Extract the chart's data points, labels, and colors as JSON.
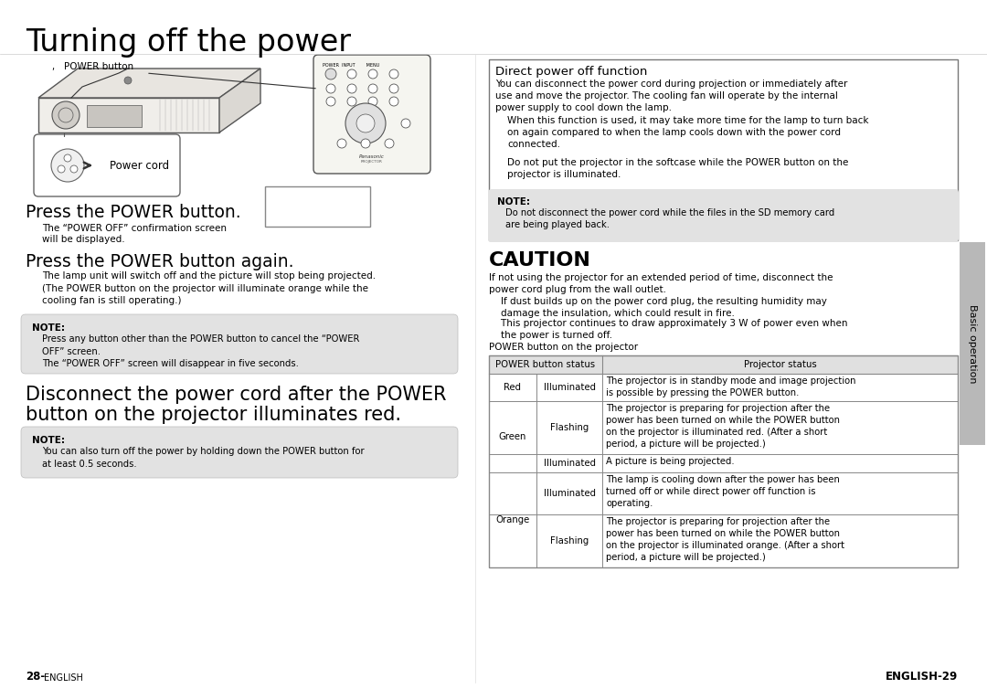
{
  "title": "Turning off the power",
  "bg_color": "#ffffff",
  "left_col": {
    "power_button_label": "POWER button",
    "power_cord_label": "Power cord",
    "step1_heading": "Press the POWER button.",
    "step1_body_line1": "The “POWER OFF” confirmation screen",
    "step1_body_line2": "will be displayed.",
    "step2_heading": "Press the POWER button again.",
    "step2_body": "The lamp unit will switch off and the picture will stop being projected.\n(The POWER button on the projector will illuminate orange while the\ncooling fan is still operating.)",
    "note1_title": "NOTE:",
    "note1_body": "Press any button other than the POWER button to cancel the “POWER\nOFF” screen.\nThe “POWER OFF” screen will disappear in five seconds.",
    "step3_heading_line1": "Disconnect the power cord after the POWER",
    "step3_heading_line2": "button on the projector illuminates red.",
    "note2_title": "NOTE:",
    "note2_body": "You can also turn off the power by holding down the POWER button for\nat least 0.5 seconds.",
    "page_num_prefix": "28-",
    "page_num_suffix": "English"
  },
  "right_col": {
    "direct_box_title": "Direct power off function",
    "direct_box_body": "You can disconnect the power cord during projection or immediately after\nuse and move the projector. The cooling fan will operate by the internal\npower supply to cool down the lamp.",
    "direct_box_indent1": "When this function is used, it may take more time for the lamp to turn back\non again compared to when the lamp cools down with the power cord\nconnected.",
    "direct_box_indent2": "Do not put the projector in the softcase while the POWER button on the\nprojector is illuminated.",
    "direct_note_title": "NOTE:",
    "direct_note_body": "Do not disconnect the power cord while the files in the SD memory card\nare being played back.",
    "caution_title": "CAUTION",
    "caution_body1": "If not using the projector for an extended period of time, disconnect the\npower cord plug from the wall outlet.",
    "caution_body2": "    If dust builds up on the power cord plug, the resulting humidity may\n    damage the insulation, which could result in fire.",
    "caution_body3": "    This projector continues to draw approximately 3 W of power even when\n    the power is turned off.",
    "table_header_label": "POWER button on the projector",
    "table_col1": "POWER button status",
    "table_col2": "Projector status",
    "table_rows": [
      {
        "col1a": "Red",
        "col1b": "Illuminated",
        "col2": "The projector is in standby mode and image projection\nis possible by pressing the POWER button."
      },
      {
        "col1a": "Green",
        "col1b": "Flashing",
        "col2": "The projector is preparing for projection after the\npower has been turned on while the POWER button\non the projector is illuminated red. (After a short\nperiod, a picture will be projected.)"
      },
      {
        "col1a": "",
        "col1b": "Illuminated",
        "col2": "A picture is being projected."
      },
      {
        "col1a": "Orange",
        "col1b": "Illuminated",
        "col2": "The lamp is cooling down after the power has been\nturned off or while direct power off function is\noperating."
      },
      {
        "col1a": "",
        "col1b": "Flashing",
        "col2": "The projector is preparing for projection after the\npower has been turned on while the POWER button\non the projector is illuminated orange. (After a short\nperiod, a picture will be projected.)"
      }
    ],
    "page_num": "English-29"
  },
  "sidebar_text": "Basic operation",
  "sidebar_color": "#b8b8b8",
  "note_bg": "#e2e2e2",
  "border_color": "#555555",
  "table_border": "#888888",
  "text_color": "#000000"
}
